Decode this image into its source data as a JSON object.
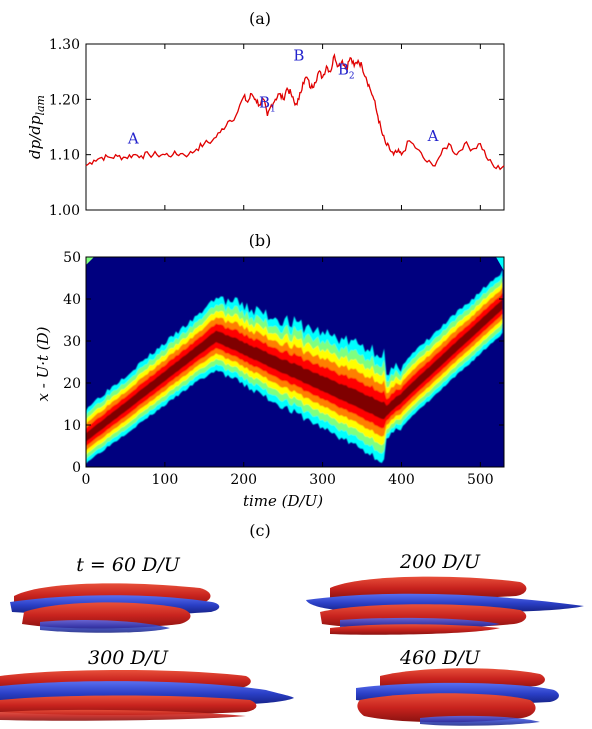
{
  "chart_data": [
    {
      "panel": "(a)",
      "type": "line",
      "ylabel_main": "dp/dp",
      "ylabel_sub": "lam",
      "ylim": [
        1.0,
        1.3
      ],
      "xlim": [
        0,
        530
      ],
      "yticks": [
        "1.00",
        "1.10",
        "1.20",
        "1.30"
      ],
      "color": "#e00000",
      "x": [
        0,
        10,
        20,
        30,
        40,
        50,
        60,
        70,
        80,
        90,
        100,
        110,
        120,
        130,
        140,
        150,
        160,
        170,
        180,
        190,
        200,
        205,
        210,
        215,
        220,
        225,
        230,
        235,
        240,
        245,
        250,
        255,
        260,
        265,
        270,
        275,
        280,
        285,
        290,
        295,
        300,
        305,
        310,
        315,
        320,
        325,
        330,
        335,
        340,
        345,
        350,
        355,
        360,
        365,
        370,
        375,
        380,
        385,
        390,
        395,
        400,
        410,
        420,
        430,
        440,
        450,
        460,
        470,
        480,
        490,
        500,
        510,
        520,
        530
      ],
      "values": [
        1.08,
        1.09,
        1.095,
        1.095,
        1.097,
        1.095,
        1.1,
        1.098,
        1.1,
        1.1,
        1.1,
        1.1,
        1.102,
        1.1,
        1.11,
        1.12,
        1.125,
        1.14,
        1.16,
        1.17,
        1.205,
        1.195,
        1.21,
        1.2,
        1.19,
        1.2,
        1.17,
        1.19,
        1.2,
        1.21,
        1.2,
        1.22,
        1.21,
        1.19,
        1.2,
        1.23,
        1.24,
        1.22,
        1.23,
        1.25,
        1.24,
        1.26,
        1.25,
        1.28,
        1.26,
        1.27,
        1.255,
        1.275,
        1.26,
        1.27,
        1.26,
        1.24,
        1.22,
        1.2,
        1.17,
        1.14,
        1.12,
        1.11,
        1.1,
        1.105,
        1.1,
        1.125,
        1.11,
        1.09,
        1.08,
        1.1,
        1.12,
        1.1,
        1.12,
        1.11,
        1.12,
        1.09,
        1.075,
        1.08
      ],
      "annotations": [
        {
          "text": "A",
          "sub": "",
          "x": 60,
          "y": 1.12
        },
        {
          "text": "B",
          "sub": "1",
          "x": 230,
          "y": 1.185
        },
        {
          "text": "B",
          "sub": "",
          "x": 270,
          "y": 1.27
        },
        {
          "text": "B",
          "sub": "2",
          "x": 330,
          "y": 1.245
        },
        {
          "text": "A",
          "sub": "",
          "x": 440,
          "y": 1.125
        }
      ]
    },
    {
      "panel": "(b)",
      "type": "heatmap",
      "xlabel": "time (D/U)",
      "ylabel": "x - U·t (D)",
      "xlim": [
        0,
        530
      ],
      "ylim": [
        0,
        50
      ],
      "xticks": [
        "0",
        "100",
        "200",
        "300",
        "400",
        "500"
      ],
      "yticks": [
        "0",
        "10",
        "20",
        "30",
        "40",
        "50"
      ],
      "colormap": [
        "#00007f",
        "#0000ff",
        "#00ffff",
        "#7fff7f",
        "#ffff00",
        "#ff7f00",
        "#ff0000",
        "#7f0000"
      ],
      "centerline": {
        "t": [
          0,
          165,
          380,
          530
        ],
        "x": [
          7,
          31,
          13,
          39
        ]
      }
    }
  ],
  "panel_c": {
    "label": "(c)",
    "snapshots": [
      {
        "time": "t = 60 D/U"
      },
      {
        "time": "200 D/U"
      },
      {
        "time": "300 D/U"
      },
      {
        "time": "460 D/U"
      }
    ]
  },
  "colors": {
    "line": "#e00000",
    "low_speed_streak": "#c8231e",
    "high_speed_streak": "#2a3fc6",
    "annotation": "#2222cc"
  }
}
